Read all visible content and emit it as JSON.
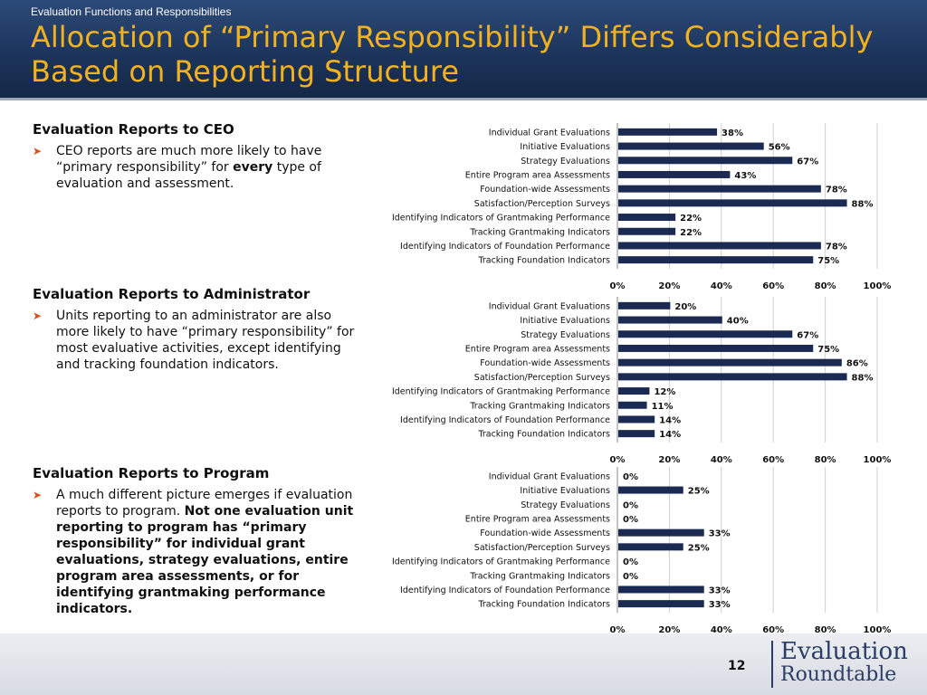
{
  "slide": {
    "subtitle": "Evaluation Functions and Responsibilities",
    "title": "Allocation of “Primary Responsibility” Differs Considerably Based on Reporting Structure",
    "page_number": "12",
    "logo_line1": "Evaluation",
    "logo_line2": "Roundtable"
  },
  "colors": {
    "bar": "#1a2a52",
    "title": "#f2b21f",
    "bullet": "#d9501c",
    "grid": "#d0d0d0"
  },
  "sections": [
    {
      "heading": "Evaluation Reports to CEO",
      "bullet_before": "CEO reports are much more likely to have “primary responsibility” for ",
      "bullet_bold": "every",
      "bullet_after": " type of evaluation and assessment."
    },
    {
      "heading": "Evaluation Reports to Administrator",
      "bullet_before": "Units reporting to an administrator are also more likely to have “primary responsibility” for most evaluative activities, except identifying and tracking foundation indicators.",
      "bullet_bold": "",
      "bullet_after": ""
    },
    {
      "heading": "Evaluation Reports to Program",
      "bullet_before": "A much different picture emerges if evaluation reports to program. ",
      "bullet_bold": "Not one evaluation unit reporting to program has “primary responsibility” for individual grant evaluations, strategy evaluations, entire program area assessments, or for identifying grantmaking performance indicators.",
      "bullet_after": ""
    }
  ],
  "chart_data": [
    {
      "type": "bar",
      "orientation": "horizontal",
      "categories": [
        "Individual Grant Evaluations",
        "Initiative Evaluations",
        "Strategy Evaluations",
        "Entire Program area Assessments",
        "Foundation-wide Assessments",
        "Satisfaction/Perception Surveys",
        "Identifying Indicators of Grantmaking Performance",
        "Tracking Grantmaking Indicators",
        "Identifying Indicators of Foundation Performance",
        "Tracking Foundation Indicators"
      ],
      "values": [
        38,
        56,
        67,
        43,
        78,
        88,
        22,
        22,
        78,
        75
      ],
      "data_labels": [
        "38%",
        "56%",
        "67%",
        "43%",
        "78%",
        "88%",
        "22%",
        "22%",
        "78%",
        "75%"
      ],
      "xlim": [
        0,
        100
      ],
      "xticks": [
        "0%",
        "20%",
        "40%",
        "60%",
        "80%",
        "100%"
      ],
      "grid": true
    },
    {
      "type": "bar",
      "orientation": "horizontal",
      "categories": [
        "Individual Grant Evaluations",
        "Initiative Evaluations",
        "Strategy Evaluations",
        "Entire Program area Assessments",
        "Foundation-wide Assessments",
        "Satisfaction/Perception Surveys",
        "Identifying Indicators of Grantmaking Performance",
        "Tracking Grantmaking Indicators",
        "Identifying Indicators of Foundation Performance",
        "Tracking Foundation Indicators"
      ],
      "values": [
        20,
        40,
        67,
        75,
        86,
        88,
        12,
        11,
        14,
        14
      ],
      "data_labels": [
        "20%",
        "40%",
        "67%",
        "75%",
        "86%",
        "88%",
        "12%",
        "11%",
        "14%",
        "14%"
      ],
      "xlim": [
        0,
        100
      ],
      "xticks": [
        "0%",
        "20%",
        "40%",
        "60%",
        "80%",
        "100%"
      ],
      "grid": true
    },
    {
      "type": "bar",
      "orientation": "horizontal",
      "categories": [
        "Individual Grant Evaluations",
        "Initiative Evaluations",
        "Strategy Evaluations",
        "Entire Program area Assessments",
        "Foundation-wide Assessments",
        "Satisfaction/Perception Surveys",
        "Identifying Indicators of Grantmaking Performance",
        "Tracking Grantmaking Indicators",
        "Identifying Indicators of Foundation Performance",
        "Tracking Foundation Indicators"
      ],
      "values": [
        0,
        25,
        0,
        0,
        33,
        25,
        0,
        0,
        33,
        33
      ],
      "data_labels": [
        "0%",
        "25%",
        "0%",
        "0%",
        "33%",
        "25%",
        "0%",
        "0%",
        "33%",
        "33%"
      ],
      "xlim": [
        0,
        100
      ],
      "xticks": [
        "0%",
        "20%",
        "40%",
        "60%",
        "80%",
        "100%"
      ],
      "grid": true
    }
  ]
}
